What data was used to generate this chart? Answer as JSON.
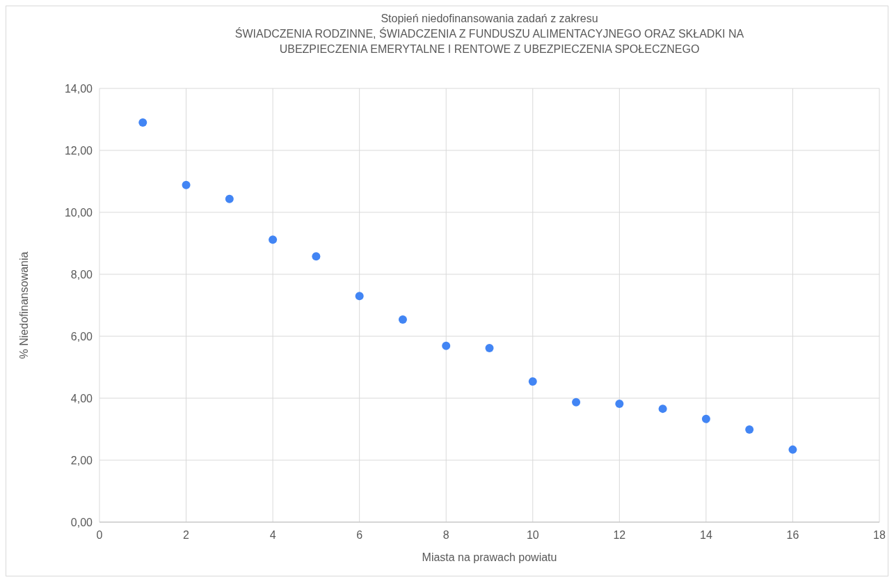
{
  "chart_data": {
    "type": "scatter",
    "title": "Stopień niedofinansowania zadań z zakresu",
    "subtitle": "ŚWIADCZENIA RODZINNE, ŚWIADCZENIA Z FUNDUSZU ALIMENTACYJNEGO ORAZ SKŁADKI NA UBEZPIECZENIA EMERYTALNE I RENTOWE Z UBEZPIECZENIA SPOŁECZNEGO",
    "xlabel": "Miasta na prawach powiatu",
    "ylabel": "% Niedofinansowania",
    "x": [
      1,
      2,
      3,
      4,
      5,
      6,
      7,
      8,
      9,
      10,
      11,
      12,
      13,
      14,
      15,
      16
    ],
    "series": [
      {
        "color": "#4285f4",
        "values": [
          12.9,
          10.88,
          10.43,
          9.12,
          8.58,
          7.3,
          6.54,
          5.69,
          5.62,
          4.54,
          3.87,
          3.82,
          3.66,
          3.33,
          2.99,
          2.34
        ]
      }
    ],
    "xlim": [
      0,
      18
    ],
    "xticks": [
      0,
      2,
      4,
      6,
      8,
      10,
      12,
      14,
      16,
      18
    ],
    "ylim": [
      0,
      14
    ],
    "yticks": [
      {
        "value": 0,
        "label": "0,00"
      },
      {
        "value": 2,
        "label": "2,00"
      },
      {
        "value": 4,
        "label": "4,00"
      },
      {
        "value": 6,
        "label": "6,00"
      },
      {
        "value": 8,
        "label": "8,00"
      },
      {
        "value": 10,
        "label": "10,00"
      },
      {
        "value": 12,
        "label": "12,00"
      },
      {
        "value": 14,
        "label": "14,00"
      }
    ],
    "grid": true,
    "marker": "circle"
  }
}
